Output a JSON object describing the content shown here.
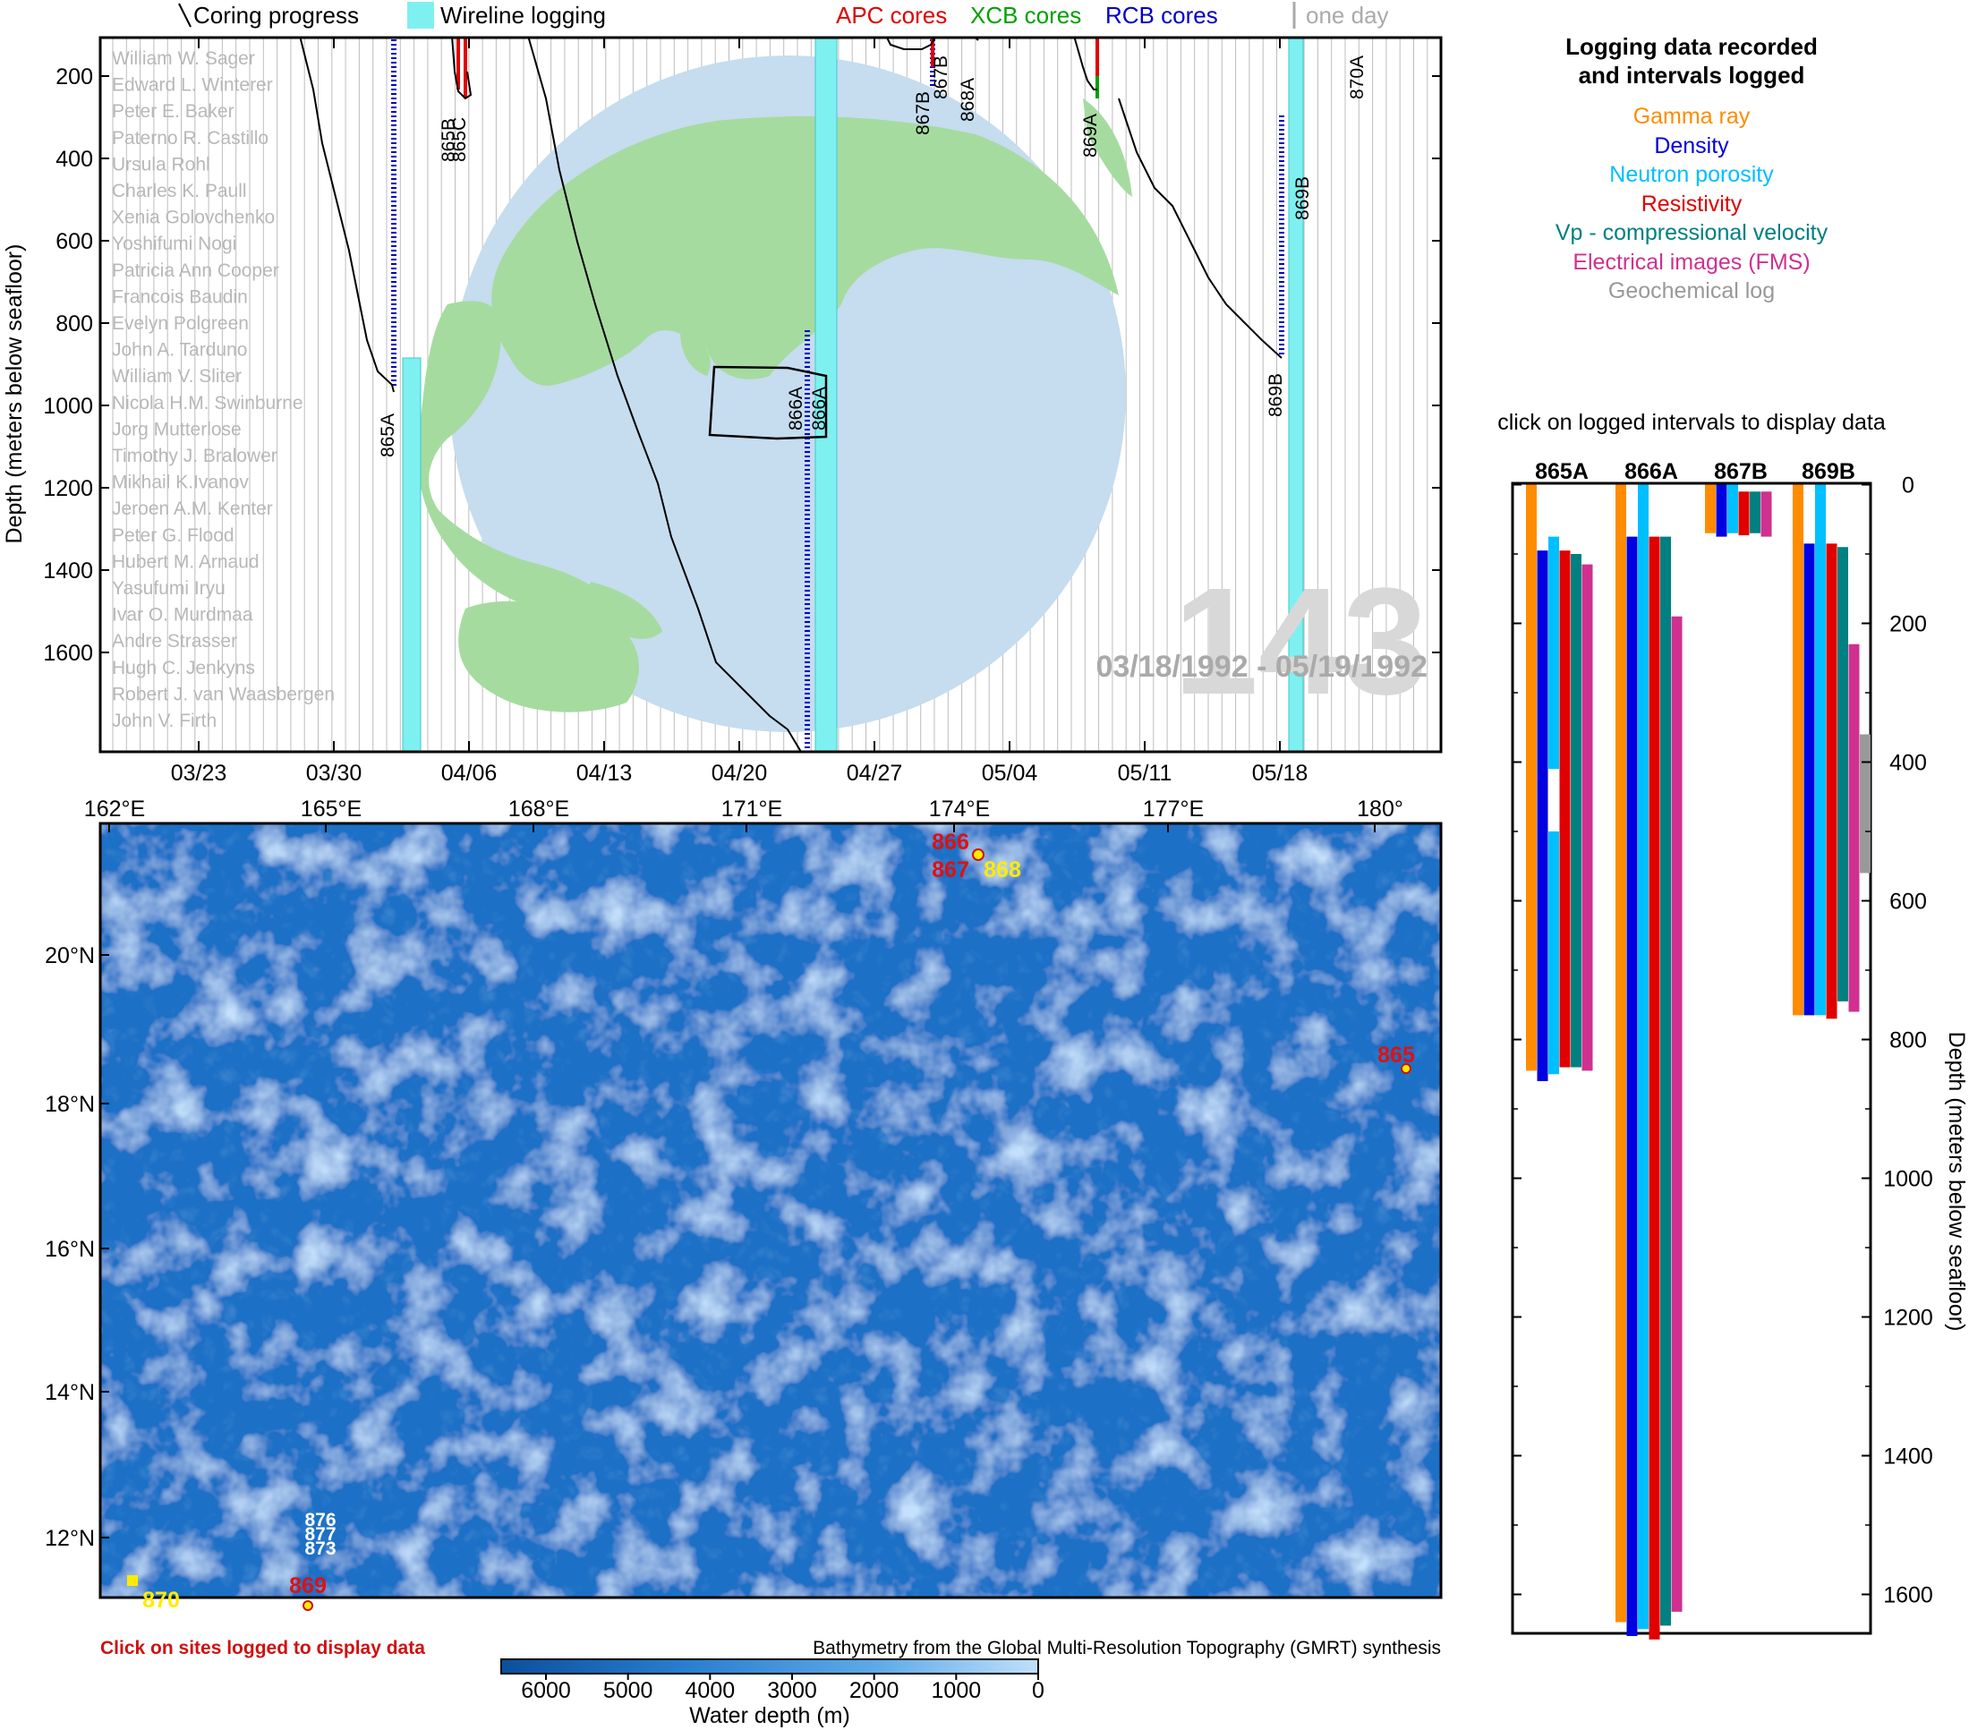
{
  "legend_top": {
    "coring": "Coring progress",
    "wireline": "Wireline logging",
    "apc": "APC cores",
    "xcb": "XCB cores",
    "rcb": "RCB cores",
    "oneday": "one day",
    "colors": {
      "apc": "#e00000",
      "xcb": "#00a000",
      "rcb": "#0000c8",
      "wireline": "#7ff0f0",
      "oneday": "#aaaaaa"
    }
  },
  "timeline": {
    "ylabel": "Depth (meters below seafloor)",
    "yticks": [
      "200",
      "400",
      "600",
      "800",
      "1000",
      "1200",
      "1400",
      "1600"
    ],
    "xticks": [
      "03/23",
      "03/30",
      "04/06",
      "04/13",
      "04/20",
      "04/27",
      "05/04",
      "05/11",
      "05/18"
    ],
    "leg_number": "143",
    "date_range": "03/18/1992 - 05/19/1992",
    "scientists": [
      "William W. Sager",
      "Edward L. Winterer",
      "Peter E. Baker",
      "Paterno R. Castillo",
      "Ursula Rohl",
      "Charles K. Paull",
      "Xenia Golovchenko",
      "Yoshifumi Nogi",
      "Patricia Ann Cooper",
      "Francois Baudin",
      "Evelyn Polgreen",
      "John A. Tarduno",
      "William V. Sliter",
      "Nicola H.M. Swinburne",
      "Jorg Mutterlose",
      "Timothy J. Bralower",
      "Mikhail K.Ivanov",
      "Jeroen A.M. Kenter",
      "Peter G. Flood",
      "Hubert M. Arnaud",
      "Yasufumi Iryu",
      "Ivar O. Murdmaa",
      "Andre Strasser",
      "Hugh C. Jenkyns",
      "Robert J. van Waasbergen",
      "John V. Firth"
    ],
    "hole_labels": [
      "865A",
      "865B",
      "865C",
      "866A",
      "866A",
      "867B",
      "867B",
      "868A",
      "869A",
      "869B",
      "869B",
      "870A"
    ]
  },
  "map": {
    "lon_ticks": [
      "162°E",
      "165°E",
      "168°E",
      "171°E",
      "174°E",
      "177°E",
      "180°"
    ],
    "lat_ticks": [
      "20°N",
      "18°N",
      "16°N",
      "14°N",
      "12°N"
    ],
    "sites_logged": [
      "865",
      "866",
      "867",
      "869"
    ],
    "sites_other": [
      "868",
      "870"
    ],
    "sites_white": [
      "876",
      "877",
      "873"
    ],
    "click_note": "Click on sites logged to display data",
    "credit": "Bathymetry from the Global Multi-Resolution Topography (GMRT) synthesis",
    "colorbar_ticks": [
      "6000",
      "5000",
      "4000",
      "3000",
      "2000",
      "1000",
      "0"
    ],
    "colorbar_label": "Water depth (m)"
  },
  "logging_legend": {
    "title_line1": "Logging data recorded",
    "title_line2": "and intervals logged",
    "items": [
      {
        "name": "Gamma ray",
        "color": "#ff8c00"
      },
      {
        "name": "Density",
        "color": "#0000e0"
      },
      {
        "name": "Neutron porosity",
        "color": "#00bfff"
      },
      {
        "name": "Resistivity",
        "color": "#e00000"
      },
      {
        "name": "Vp - compressional velocity",
        "color": "#008080"
      },
      {
        "name": "Electrical images (FMS)",
        "color": "#d0308f"
      },
      {
        "name": "Geochemical log",
        "color": "#999999"
      }
    ],
    "click_hint": "click on logged intervals to display data"
  },
  "chart_data": {
    "type": "bar",
    "title": "",
    "ylabel": "Depth (meters below seafloor)",
    "ylim": [
      0,
      1660
    ],
    "yticks": [
      "0",
      "200",
      "400",
      "600",
      "800",
      "1000",
      "1200",
      "1400",
      "1600"
    ],
    "holes": [
      {
        "name": "865A",
        "intervals": [
          {
            "log": "Gamma ray",
            "top": 0,
            "bottom": 845
          },
          {
            "log": "Density",
            "top": 95,
            "bottom": 860
          },
          {
            "log": "Neutron porosity",
            "top": 75,
            "bottom": 410
          },
          {
            "log": "Neutron porosity",
            "top": 500,
            "bottom": 850
          },
          {
            "log": "Resistivity",
            "top": 95,
            "bottom": 840
          },
          {
            "log": "Vp - compressional velocity",
            "top": 100,
            "bottom": 840
          },
          {
            "log": "Electrical images (FMS)",
            "top": 115,
            "bottom": 845
          }
        ]
      },
      {
        "name": "866A",
        "intervals": [
          {
            "log": "Gamma ray",
            "top": 0,
            "bottom": 1640
          },
          {
            "log": "Density",
            "top": 75,
            "bottom": 1660
          },
          {
            "log": "Neutron porosity",
            "top": 0,
            "bottom": 1650
          },
          {
            "log": "Resistivity",
            "top": 75,
            "bottom": 1665
          },
          {
            "log": "Vp - compressional velocity",
            "top": 75,
            "bottom": 1645
          },
          {
            "log": "Electrical images (FMS)",
            "top": 190,
            "bottom": 1625
          }
        ]
      },
      {
        "name": "867B",
        "intervals": [
          {
            "log": "Gamma ray",
            "top": 0,
            "bottom": 70
          },
          {
            "log": "Density",
            "top": 0,
            "bottom": 75
          },
          {
            "log": "Neutron porosity",
            "top": 0,
            "bottom": 70
          },
          {
            "log": "Resistivity",
            "top": 10,
            "bottom": 73
          },
          {
            "log": "Vp - compressional velocity",
            "top": 10,
            "bottom": 70
          },
          {
            "log": "Electrical images (FMS)",
            "top": 10,
            "bottom": 75
          }
        ]
      },
      {
        "name": "869B",
        "intervals": [
          {
            "log": "Gamma ray",
            "top": 0,
            "bottom": 765
          },
          {
            "log": "Density",
            "top": 85,
            "bottom": 765
          },
          {
            "log": "Neutron porosity",
            "top": 0,
            "bottom": 765
          },
          {
            "log": "Resistivity",
            "top": 85,
            "bottom": 770
          },
          {
            "log": "Vp - compressional velocity",
            "top": 90,
            "bottom": 745
          },
          {
            "log": "Electrical images (FMS)",
            "top": 230,
            "bottom": 760
          },
          {
            "log": "Geochemical log",
            "top": 360,
            "bottom": 560
          }
        ]
      }
    ]
  }
}
